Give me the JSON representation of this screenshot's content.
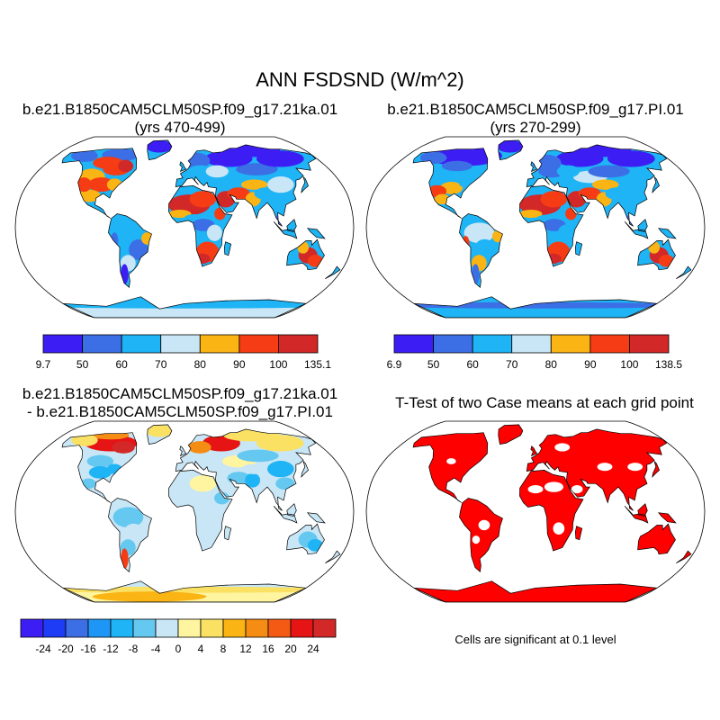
{
  "title": "ANN FSDSND (W/m^2)",
  "panels": [
    {
      "id": "case1",
      "title_lines": [
        "b.e21.B1850CAM5CLM50SP.f09_g17.21ka.01",
        "(yrs 470-499)"
      ],
      "colorbar": {
        "labels": [
          "9.7",
          "50",
          "60",
          "70",
          "80",
          "90",
          "100",
          "135.1"
        ],
        "colors": [
          "#3c1ef5",
          "#3c6ee5",
          "#1eb4f5",
          "#c8e6f5",
          "#fab414",
          "#f53c14",
          "#d22828"
        ]
      }
    },
    {
      "id": "case2",
      "title_lines": [
        "b.e21.B1850CAM5CLM50SP.f09_g17.PI.01",
        "(yrs 270-299)"
      ],
      "colorbar": {
        "labels": [
          "6.9",
          "50",
          "60",
          "70",
          "80",
          "90",
          "100",
          "138.5"
        ],
        "colors": [
          "#3c1ef5",
          "#3c6ee5",
          "#1eb4f5",
          "#c8e6f5",
          "#fab414",
          "#f53c14",
          "#d22828"
        ]
      }
    },
    {
      "id": "difference",
      "title_lines": [
        "b.e21.B1850CAM5CLM50SP.f09_g17.21ka.01",
        "- b.e21.B1850CAM5CLM50SP.f09_g17.PI.01"
      ],
      "colorbar": {
        "labels": [
          "-24",
          "-20",
          "-16",
          "-12",
          "-8",
          "-4",
          "0",
          "4",
          "8",
          "12",
          "16",
          "20",
          "24"
        ],
        "colors": [
          "#3c1ef5",
          "#1e3cf5",
          "#3c6ee5",
          "#1e96f5",
          "#1eb4f5",
          "#64c8f0",
          "#c8e6f5",
          "#fff5a0",
          "#fae164",
          "#fab414",
          "#f58c14",
          "#f55a14",
          "#e61414",
          "#d22828"
        ]
      }
    },
    {
      "id": "ttest",
      "title_lines": [
        "T-Test of two Case means at each grid point"
      ],
      "note": "Cells are significant at 0.1 level",
      "colors": {
        "significant": "#ff0000"
      }
    }
  ]
}
